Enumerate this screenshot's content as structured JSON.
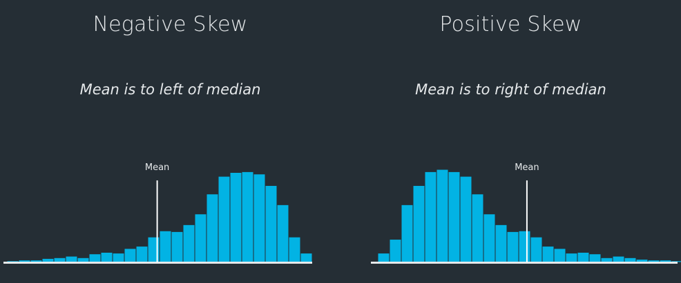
{
  "colors": {
    "background": "#252e35",
    "bar": "#02b3e4",
    "bar_edge": "#252e35",
    "text": "#e6e9eb",
    "mean_line": "#ffffff"
  },
  "chart_data": [
    {
      "type": "bar",
      "title": "Negative Skew",
      "subtitle": "Mean is to left of median",
      "xlabel": "",
      "ylabel": "",
      "values": [
        2,
        3,
        3,
        5,
        6,
        8,
        6,
        11,
        13,
        12,
        18,
        21,
        33,
        41,
        40,
        49,
        63,
        89,
        112,
        117,
        118,
        115,
        100,
        75,
        33,
        12
      ],
      "ylim": [
        0,
        130
      ],
      "mean_bin_index": 12.8,
      "mean_label": "Mean",
      "grid": false,
      "legend": "none"
    },
    {
      "type": "bar",
      "title": "Positive Skew",
      "subtitle": "Mean is to right of median",
      "xlabel": "",
      "ylabel": "",
      "values": [
        12,
        30,
        75,
        100,
        118,
        121,
        118,
        112,
        89,
        63,
        49,
        40,
        41,
        33,
        21,
        18,
        12,
        13,
        11,
        6,
        8,
        6,
        4,
        3,
        3,
        2
      ],
      "ylim": [
        0,
        130
      ],
      "mean_bin_index": 12.7,
      "mean_label": "Mean",
      "grid": false,
      "legend": "none"
    }
  ]
}
